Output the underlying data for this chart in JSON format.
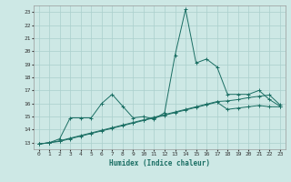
{
  "xlabel": "Humidex (Indice chaleur)",
  "xlim": [
    -0.5,
    23.5
  ],
  "ylim": [
    12.5,
    23.5
  ],
  "yticks": [
    13,
    14,
    15,
    16,
    17,
    18,
    19,
    20,
    21,
    22,
    23
  ],
  "xticks": [
    0,
    1,
    2,
    3,
    4,
    5,
    6,
    7,
    8,
    9,
    10,
    11,
    12,
    13,
    14,
    15,
    16,
    17,
    18,
    19,
    20,
    21,
    22,
    23
  ],
  "background_color": "#cde8e5",
  "grid_color": "#aacfcc",
  "line_color": "#1a6e63",
  "line1_x": [
    0,
    1,
    2,
    3,
    4,
    5,
    6,
    7,
    8,
    9,
    10,
    11,
    12,
    13,
    14,
    15,
    16,
    17,
    18,
    19,
    20,
    21,
    22,
    23
  ],
  "line1_y": [
    12.9,
    13.0,
    13.3,
    14.9,
    14.9,
    14.9,
    16.0,
    16.7,
    15.8,
    14.9,
    15.0,
    14.8,
    15.3,
    19.7,
    23.2,
    19.1,
    19.4,
    18.8,
    16.7,
    16.7,
    16.7,
    17.0,
    16.3,
    15.8
  ],
  "line2_x": [
    0,
    1,
    2,
    3,
    4,
    5,
    6,
    7,
    8,
    9,
    10,
    11,
    12,
    13,
    14,
    15,
    16,
    17,
    18,
    19,
    20,
    21,
    22,
    23
  ],
  "line2_y": [
    12.9,
    13.0,
    13.15,
    13.35,
    13.55,
    13.75,
    13.95,
    14.15,
    14.35,
    14.55,
    14.75,
    14.95,
    15.15,
    15.35,
    15.55,
    15.75,
    15.95,
    16.15,
    16.2,
    16.3,
    16.45,
    16.55,
    16.65,
    15.9
  ],
  "line3_x": [
    0,
    1,
    2,
    3,
    4,
    5,
    6,
    7,
    8,
    9,
    10,
    11,
    12,
    13,
    14,
    15,
    16,
    17,
    18,
    19,
    20,
    21,
    22,
    23
  ],
  "line3_y": [
    12.9,
    13.0,
    13.1,
    13.3,
    13.5,
    13.7,
    13.9,
    14.1,
    14.3,
    14.5,
    14.7,
    14.9,
    15.1,
    15.3,
    15.5,
    15.7,
    15.9,
    16.1,
    15.55,
    15.65,
    15.75,
    15.85,
    15.75,
    15.75
  ]
}
